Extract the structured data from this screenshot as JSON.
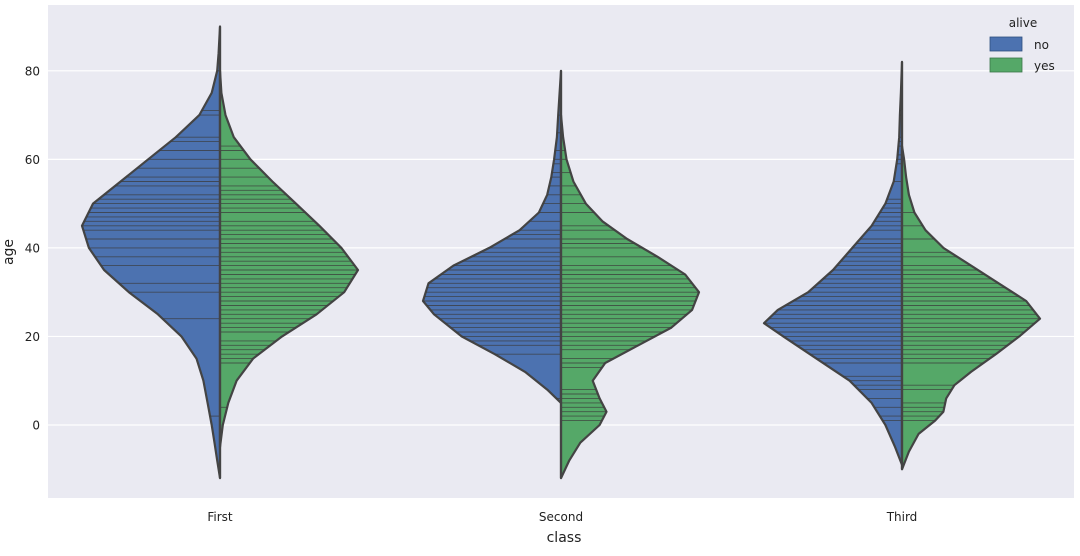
{
  "chart_data": {
    "type": "violin",
    "split": true,
    "inner": "stick",
    "xlabel": "class",
    "ylabel": "age",
    "categories": [
      "First",
      "Second",
      "Third"
    ],
    "yticks": [
      0,
      20,
      40,
      60,
      80
    ],
    "ylim": [
      -17,
      94
    ],
    "grid": true,
    "legend": {
      "title": "alive",
      "placement": "top-right",
      "entries": [
        {
          "label": "no",
          "color": "#4c72b0"
        },
        {
          "label": "yes",
          "color": "#55a868"
        }
      ]
    },
    "series": [
      {
        "name": "no",
        "color": "#4c72b0",
        "profiles": [
          [
            [
              -12,
              0
            ],
            [
              -8,
              0.02
            ],
            [
              -4,
              0.04
            ],
            [
              0,
              0.06
            ],
            [
              5,
              0.09
            ],
            [
              10,
              0.12
            ],
            [
              15,
              0.17
            ],
            [
              20,
              0.28
            ],
            [
              25,
              0.45
            ],
            [
              30,
              0.66
            ],
            [
              35,
              0.84
            ],
            [
              40,
              0.95
            ],
            [
              45,
              1.0
            ],
            [
              50,
              0.92
            ],
            [
              55,
              0.72
            ],
            [
              60,
              0.52
            ],
            [
              65,
              0.32
            ],
            [
              70,
              0.15
            ],
            [
              75,
              0.06
            ],
            [
              80,
              0.02
            ],
            [
              84,
              0.01
            ],
            [
              90,
              0
            ]
          ],
          [
            [
              5,
              0
            ],
            [
              8,
              0.1
            ],
            [
              12,
              0.26
            ],
            [
              16,
              0.48
            ],
            [
              20,
              0.72
            ],
            [
              25,
              0.92
            ],
            [
              28,
              1.0
            ],
            [
              32,
              0.96
            ],
            [
              36,
              0.78
            ],
            [
              40,
              0.52
            ],
            [
              44,
              0.3
            ],
            [
              48,
              0.16
            ],
            [
              52,
              0.1
            ],
            [
              56,
              0.07
            ],
            [
              60,
              0.05
            ],
            [
              65,
              0.03
            ],
            [
              70,
              0.02
            ],
            [
              75,
              0.01
            ],
            [
              80,
              0
            ]
          ],
          [
            [
              -9,
              0
            ],
            [
              -5,
              0.05
            ],
            [
              0,
              0.12
            ],
            [
              5,
              0.22
            ],
            [
              10,
              0.38
            ],
            [
              15,
              0.62
            ],
            [
              20,
              0.86
            ],
            [
              23,
              1.0
            ],
            [
              26,
              0.9
            ],
            [
              30,
              0.68
            ],
            [
              35,
              0.5
            ],
            [
              40,
              0.36
            ],
            [
              45,
              0.22
            ],
            [
              50,
              0.12
            ],
            [
              55,
              0.06
            ],
            [
              60,
              0.035
            ],
            [
              65,
              0.02
            ],
            [
              70,
              0.015
            ],
            [
              75,
              0.008
            ],
            [
              82,
              0
            ]
          ]
        ],
        "sticks": [
          [
            2,
            24,
            30,
            32,
            36,
            38,
            40,
            42,
            44,
            45,
            46,
            47,
            48,
            49,
            50,
            51,
            52,
            54,
            55,
            56,
            58,
            60,
            62,
            64,
            65,
            70,
            71,
            80
          ],
          [
            6,
            16,
            18,
            19,
            20,
            21,
            22,
            23,
            24,
            25,
            26,
            27,
            28,
            29,
            30,
            31,
            32,
            33,
            34,
            35,
            36,
            37,
            38,
            39,
            40,
            42,
            43,
            44,
            46,
            48,
            50,
            52,
            54,
            56,
            57,
            59,
            60,
            62,
            66,
            70
          ],
          [
            1,
            2,
            4,
            6,
            8,
            9,
            10,
            11,
            14,
            15,
            16,
            17,
            18,
            19,
            20,
            21,
            22,
            23,
            24,
            25,
            26,
            27,
            28,
            29,
            30,
            31,
            32,
            33,
            34,
            35,
            36,
            37,
            38,
            39,
            40,
            41,
            42,
            44,
            45,
            46,
            47,
            48,
            49,
            50,
            51,
            55,
            59,
            60,
            61,
            63,
            64,
            65,
            70,
            71
          ]
        ]
      },
      {
        "name": "yes",
        "color": "#55a868",
        "profiles": [
          [
            [
              -5,
              0
            ],
            [
              0,
              0.02
            ],
            [
              5,
              0.06
            ],
            [
              10,
              0.12
            ],
            [
              15,
              0.24
            ],
            [
              20,
              0.45
            ],
            [
              25,
              0.7
            ],
            [
              30,
              0.9
            ],
            [
              35,
              1.0
            ],
            [
              40,
              0.88
            ],
            [
              45,
              0.72
            ],
            [
              50,
              0.55
            ],
            [
              55,
              0.38
            ],
            [
              60,
              0.22
            ],
            [
              65,
              0.1
            ],
            [
              70,
              0.04
            ],
            [
              75,
              0.01
            ],
            [
              80,
              0
            ]
          ],
          [
            [
              -12,
              0
            ],
            [
              -8,
              0.06
            ],
            [
              -4,
              0.14
            ],
            [
              0,
              0.28
            ],
            [
              3,
              0.33
            ],
            [
              6,
              0.28
            ],
            [
              10,
              0.23
            ],
            [
              14,
              0.32
            ],
            [
              18,
              0.56
            ],
            [
              22,
              0.8
            ],
            [
              26,
              0.95
            ],
            [
              30,
              1.0
            ],
            [
              34,
              0.9
            ],
            [
              38,
              0.7
            ],
            [
              42,
              0.48
            ],
            [
              46,
              0.3
            ],
            [
              50,
              0.18
            ],
            [
              55,
              0.09
            ],
            [
              60,
              0.04
            ],
            [
              65,
              0.015
            ],
            [
              70,
              0
            ]
          ],
          [
            [
              -10,
              0
            ],
            [
              -6,
              0.05
            ],
            [
              -2,
              0.12
            ],
            [
              1,
              0.24
            ],
            [
              3,
              0.3
            ],
            [
              6,
              0.32
            ],
            [
              9,
              0.38
            ],
            [
              12,
              0.5
            ],
            [
              16,
              0.68
            ],
            [
              20,
              0.85
            ],
            [
              24,
              1.0
            ],
            [
              28,
              0.9
            ],
            [
              32,
              0.7
            ],
            [
              36,
              0.5
            ],
            [
              40,
              0.3
            ],
            [
              44,
              0.17
            ],
            [
              48,
              0.09
            ],
            [
              52,
              0.05
            ],
            [
              56,
              0.03
            ],
            [
              60,
              0.015
            ],
            [
              63,
              0
            ]
          ]
        ],
        "sticks": [
          [
            4,
            14,
            15,
            16,
            17,
            18,
            19,
            21,
            22,
            23,
            24,
            25,
            26,
            27,
            28,
            29,
            30,
            31,
            32,
            33,
            34,
            35,
            36,
            37,
            38,
            39,
            40,
            41,
            42,
            43,
            44,
            45,
            46,
            48,
            49,
            50,
            51,
            52,
            53,
            54,
            56,
            58,
            60,
            62,
            63
          ],
          [
            1,
            2,
            3,
            4,
            5,
            6,
            7,
            8,
            13,
            14,
            15,
            17,
            18,
            19,
            20,
            21,
            22,
            23,
            24,
            25,
            26,
            27,
            28,
            29,
            30,
            31,
            32,
            33,
            34,
            35,
            36,
            38,
            40,
            41,
            42,
            44,
            45,
            48,
            50,
            52,
            54,
            57,
            60,
            62
          ],
          [
            1,
            2,
            3,
            4,
            5,
            8,
            9,
            14,
            15,
            16,
            17,
            18,
            19,
            20,
            21,
            22,
            23,
            24,
            25,
            26,
            27,
            28,
            29,
            30,
            31,
            32,
            33,
            34,
            35,
            36,
            38,
            39,
            42,
            45,
            48
          ]
        ]
      }
    ]
  }
}
